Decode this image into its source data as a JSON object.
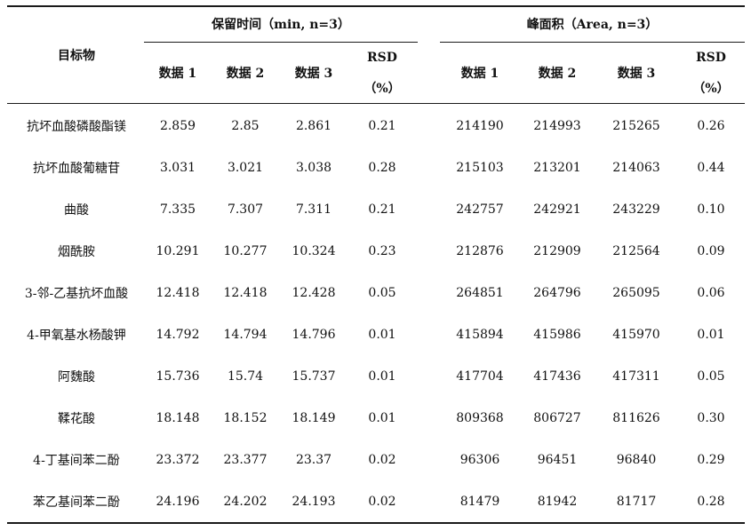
{
  "chart_data": {
    "type": "table",
    "title": "",
    "header": {
      "compound_label": "目标物",
      "group_rt_label": "保留时间（min, n=3）",
      "group_area_label": "峰面积（Area, n=3）",
      "sub_labels": [
        "数据 1",
        "数据 2",
        "数据 3"
      ],
      "rsd_label": "RSD",
      "rsd_unit": "（%）"
    },
    "columns": [
      "目标物",
      "保留时间 数据 1",
      "保留时间 数据 2",
      "保留时间 数据 3",
      "保留时间 RSD（%）",
      "峰面积 数据 1",
      "峰面积 数据 2",
      "峰面积 数据 3",
      "峰面积 RSD（%）"
    ],
    "rows": [
      [
        "抗坏血酸磷酸酯镁",
        "2.859",
        "2.85",
        "2.861",
        "0.21",
        "214190",
        "214993",
        "215265",
        "0.26"
      ],
      [
        "抗坏血酸葡糖苷",
        "3.031",
        "3.021",
        "3.038",
        "0.28",
        "215103",
        "213201",
        "214063",
        "0.44"
      ],
      [
        "曲酸",
        "7.335",
        "7.307",
        "7.311",
        "0.21",
        "242757",
        "242921",
        "243229",
        "0.10"
      ],
      [
        "烟酰胺",
        "10.291",
        "10.277",
        "10.324",
        "0.23",
        "212876",
        "212909",
        "212564",
        "0.09"
      ],
      [
        "3-邻-乙基抗坏血酸",
        "12.418",
        "12.418",
        "12.428",
        "0.05",
        "264851",
        "264796",
        "265095",
        "0.06"
      ],
      [
        "4-甲氧基水杨酸钾",
        "14.792",
        "14.794",
        "14.796",
        "0.01",
        "415894",
        "415986",
        "415970",
        "0.01"
      ],
      [
        "阿魏酸",
        "15.736",
        "15.74",
        "15.737",
        "0.01",
        "417704",
        "417436",
        "417311",
        "0.05"
      ],
      [
        "鞣花酸",
        "18.148",
        "18.152",
        "18.149",
        "0.01",
        "809368",
        "806727",
        "811626",
        "0.30"
      ],
      [
        "4-丁基间苯二酚",
        "23.372",
        "23.377",
        "23.37",
        "0.02",
        "96306",
        "96451",
        "96840",
        "0.29"
      ],
      [
        "苯乙基间苯二酚",
        "24.196",
        "24.202",
        "24.193",
        "0.02",
        "81479",
        "81942",
        "81717",
        "0.28"
      ]
    ]
  }
}
